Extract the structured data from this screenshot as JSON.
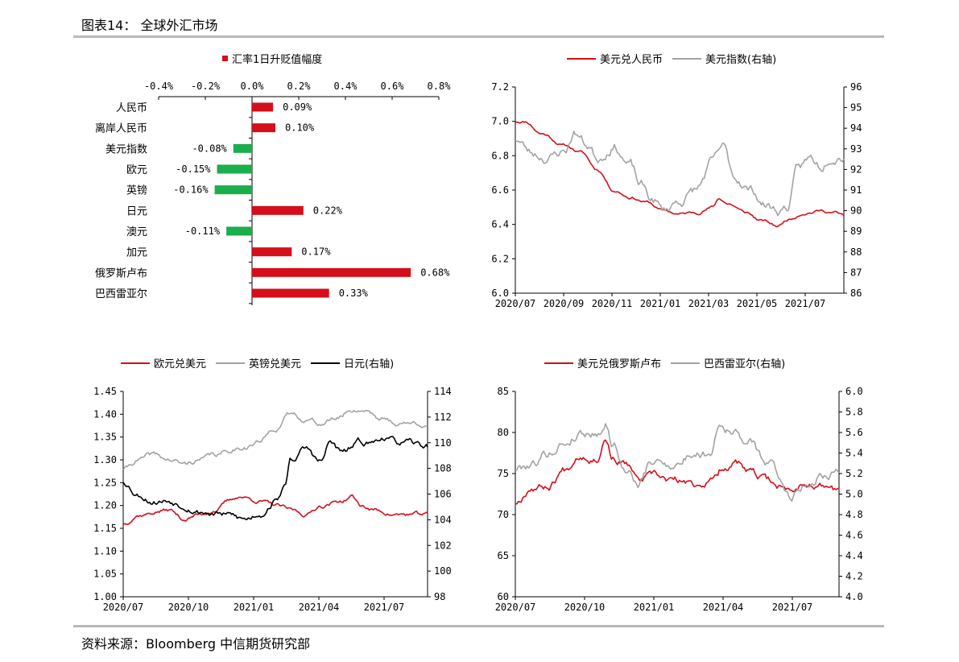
{
  "page": {
    "figure_title": "图表14： 全球外汇市场",
    "source": "资料来源：Bloomberg 中信期货研究部"
  },
  "colors": {
    "red": "#d40f1b",
    "green": "#1aae4c",
    "gray": "#a3a3a3",
    "black": "#000000"
  },
  "chart_data": [
    {
      "id": "fx-bar",
      "type": "bar",
      "orientation": "horizontal",
      "legend": "汇率1日升贬值幅度",
      "legend_position": "top",
      "categories": [
        "人民币",
        "离岸人民币",
        "美元指数",
        "欧元",
        "英镑",
        "日元",
        "澳元",
        "加元",
        "俄罗斯卢布",
        "巴西雷亚尔"
      ],
      "values": [
        0.09,
        0.1,
        -0.08,
        -0.15,
        -0.16,
        0.22,
        -0.11,
        0.17,
        0.68,
        0.33
      ],
      "value_labels": [
        "0.09%",
        "0.10%",
        "-0.08%",
        "-0.15%",
        "-0.16%",
        "0.22%",
        "-0.11%",
        "0.17%",
        "0.68%",
        "0.33%"
      ],
      "xlim": [
        -0.4,
        0.8
      ],
      "xticks": [
        "-0.4%",
        "-0.2%",
        "0.0%",
        "0.2%",
        "0.4%",
        "0.6%",
        "0.8%"
      ],
      "xtick_values": [
        -0.4,
        -0.2,
        0,
        0.2,
        0.4,
        0.6,
        0.8
      ],
      "positive_color": "#d40f1b",
      "negative_color": "#1aae4c"
    },
    {
      "id": "usdcny",
      "type": "line",
      "legend_position": "top",
      "x_start": "2020-07",
      "x_end": "2021-08",
      "xticks": [
        "2020/07",
        "2020/09",
        "2020/11",
        "2021/01",
        "2021/03",
        "2021/05",
        "2021/07"
      ],
      "ylim": [
        6.0,
        7.2
      ],
      "yticks": [
        "6.0",
        "6.2",
        "6.4",
        "6.6",
        "6.8",
        "7.0",
        "7.2"
      ],
      "ylim_right": [
        86,
        96
      ],
      "yticks_right": [
        "86",
        "87",
        "88",
        "89",
        "90",
        "91",
        "92",
        "93",
        "94",
        "95",
        "96"
      ],
      "series": [
        {
          "name": "美元兑人民币",
          "axis": "left",
          "color": "#d40f1b",
          "noise": 0.006,
          "seed": 11,
          "keys": [
            [
              0,
              7.0
            ],
            [
              0.03,
              7.0
            ],
            [
              0.08,
              6.93
            ],
            [
              0.15,
              6.86
            ],
            [
              0.2,
              6.82
            ],
            [
              0.25,
              6.72
            ],
            [
              0.3,
              6.6
            ],
            [
              0.35,
              6.56
            ],
            [
              0.4,
              6.53
            ],
            [
              0.45,
              6.48
            ],
            [
              0.5,
              6.46
            ],
            [
              0.55,
              6.47
            ],
            [
              0.6,
              6.5
            ],
            [
              0.62,
              6.55
            ],
            [
              0.65,
              6.52
            ],
            [
              0.7,
              6.47
            ],
            [
              0.75,
              6.42
            ],
            [
              0.8,
              6.39
            ],
            [
              0.83,
              6.43
            ],
            [
              0.88,
              6.47
            ],
            [
              0.93,
              6.48
            ],
            [
              0.97,
              6.47
            ],
            [
              1.0,
              6.45
            ]
          ]
        },
        {
          "name": "美元指数(右轴)",
          "axis": "right",
          "color": "#a3a3a3",
          "noise": 0.18,
          "seed": 23,
          "keys": [
            [
              0,
              93.5
            ],
            [
              0.05,
              92.8
            ],
            [
              0.1,
              92.6
            ],
            [
              0.15,
              92.9
            ],
            [
              0.18,
              93.8
            ],
            [
              0.22,
              93.2
            ],
            [
              0.25,
              92.6
            ],
            [
              0.3,
              93.2
            ],
            [
              0.35,
              92.2
            ],
            [
              0.38,
              91.2
            ],
            [
              0.42,
              90.5
            ],
            [
              0.45,
              90.0
            ],
            [
              0.5,
              90.5
            ],
            [
              0.55,
              91.0
            ],
            [
              0.6,
              92.3
            ],
            [
              0.63,
              93.0
            ],
            [
              0.67,
              91.6
            ],
            [
              0.72,
              91.0
            ],
            [
              0.76,
              90.3
            ],
            [
              0.8,
              90.0
            ],
            [
              0.83,
              90.2
            ],
            [
              0.86,
              92.0
            ],
            [
              0.9,
              92.5
            ],
            [
              0.93,
              92.2
            ],
            [
              0.96,
              92.8
            ],
            [
              1.0,
              92.8
            ]
          ]
        }
      ]
    },
    {
      "id": "eur-gbp-jpy",
      "type": "line",
      "legend_position": "top",
      "x_start": "2020-07",
      "x_end": "2021-08",
      "xticks": [
        "2020/07",
        "2020/10",
        "2021/01",
        "2021/04",
        "2021/07"
      ],
      "ylim": [
        1.0,
        1.45
      ],
      "yticks": [
        "1.00",
        "1.05",
        "1.10",
        "1.15",
        "1.20",
        "1.25",
        "1.30",
        "1.35",
        "1.40",
        "1.45"
      ],
      "ylim_right": [
        98,
        114
      ],
      "yticks_right": [
        "98",
        "100",
        "102",
        "104",
        "106",
        "108",
        "110",
        "112",
        "114"
      ],
      "series": [
        {
          "name": "欧元兑美元",
          "axis": "left",
          "color": "#d40f1b",
          "noise": 0.003,
          "seed": 37,
          "keys": [
            [
              0,
              1.16
            ],
            [
              0.05,
              1.18
            ],
            [
              0.15,
              1.19
            ],
            [
              0.2,
              1.17
            ],
            [
              0.25,
              1.18
            ],
            [
              0.3,
              1.19
            ],
            [
              0.35,
              1.21
            ],
            [
              0.38,
              1.22
            ],
            [
              0.45,
              1.21
            ],
            [
              0.5,
              1.2
            ],
            [
              0.55,
              1.19
            ],
            [
              0.6,
              1.18
            ],
            [
              0.65,
              1.2
            ],
            [
              0.72,
              1.21
            ],
            [
              0.75,
              1.22
            ],
            [
              0.78,
              1.2
            ],
            [
              0.82,
              1.19
            ],
            [
              0.9,
              1.18
            ],
            [
              1.0,
              1.18
            ]
          ]
        },
        {
          "name": "英镑兑美元",
          "axis": "left",
          "color": "#a3a3a3",
          "noise": 0.004,
          "seed": 41,
          "keys": [
            [
              0,
              1.28
            ],
            [
              0.05,
              1.3
            ],
            [
              0.1,
              1.31
            ],
            [
              0.15,
              1.3
            ],
            [
              0.2,
              1.29
            ],
            [
              0.25,
              1.3
            ],
            [
              0.3,
              1.31
            ],
            [
              0.4,
              1.33
            ],
            [
              0.45,
              1.34
            ],
            [
              0.5,
              1.37
            ],
            [
              0.55,
              1.4
            ],
            [
              0.6,
              1.39
            ],
            [
              0.65,
              1.38
            ],
            [
              0.7,
              1.39
            ],
            [
              0.75,
              1.41
            ],
            [
              0.8,
              1.41
            ],
            [
              0.85,
              1.39
            ],
            [
              0.9,
              1.38
            ],
            [
              1.0,
              1.38
            ]
          ]
        },
        {
          "name": "日元(右轴)",
          "axis": "right",
          "color": "#000000",
          "noise": 0.18,
          "seed": 53,
          "keys": [
            [
              0,
              107
            ],
            [
              0.05,
              106
            ],
            [
              0.1,
              105.5
            ],
            [
              0.15,
              105.5
            ],
            [
              0.2,
              105.2
            ],
            [
              0.25,
              104.7
            ],
            [
              0.3,
              104.5
            ],
            [
              0.35,
              104.3
            ],
            [
              0.4,
              104.0
            ],
            [
              0.45,
              104.5
            ],
            [
              0.5,
              105.5
            ],
            [
              0.53,
              106.5
            ],
            [
              0.55,
              108.7
            ],
            [
              0.6,
              109.5
            ],
            [
              0.65,
              108.5
            ],
            [
              0.68,
              110.0
            ],
            [
              0.72,
              109.2
            ],
            [
              0.78,
              110.0
            ],
            [
              0.82,
              110.0
            ],
            [
              0.85,
              110.5
            ],
            [
              0.9,
              110.0
            ],
            [
              1.0,
              109.7
            ]
          ]
        }
      ]
    },
    {
      "id": "rub-brl",
      "type": "line",
      "legend_position": "top",
      "x_start": "2020-07",
      "x_end": "2021-08",
      "xticks": [
        "2020/07",
        "2020/10",
        "2021/01",
        "2021/04",
        "2021/07"
      ],
      "ylim": [
        60,
        85
      ],
      "yticks": [
        "60",
        "65",
        "70",
        "75",
        "80",
        "85"
      ],
      "ylim_right": [
        4.0,
        6.0
      ],
      "yticks_right": [
        "4.0",
        "4.2",
        "4.4",
        "4.6",
        "4.8",
        "5.0",
        "5.2",
        "5.4",
        "5.6",
        "5.8",
        "6.0"
      ],
      "series": [
        {
          "name": "美元兑俄罗斯卢布",
          "axis": "left",
          "color": "#d40f1b",
          "noise": 0.35,
          "seed": 67,
          "keys": [
            [
              0,
              71.5
            ],
            [
              0.05,
              73.5
            ],
            [
              0.1,
              73.5
            ],
            [
              0.15,
              75.5
            ],
            [
              0.2,
              77.5
            ],
            [
              0.25,
              77.0
            ],
            [
              0.28,
              79.5
            ],
            [
              0.3,
              77.0
            ],
            [
              0.35,
              76.0
            ],
            [
              0.38,
              74.0
            ],
            [
              0.42,
              74.5
            ],
            [
              0.5,
              74.0
            ],
            [
              0.55,
              73.5
            ],
            [
              0.6,
              74.0
            ],
            [
              0.65,
              76.0
            ],
            [
              0.68,
              76.5
            ],
            [
              0.72,
              75.0
            ],
            [
              0.78,
              74.0
            ],
            [
              0.85,
              73.0
            ],
            [
              0.9,
              74.0
            ],
            [
              0.95,
              73.5
            ],
            [
              1.0,
              73.0
            ]
          ]
        },
        {
          "name": "巴西雷亚尔(右轴)",
          "axis": "right",
          "color": "#a3a3a3",
          "noise": 0.035,
          "seed": 79,
          "keys": [
            [
              0,
              5.25
            ],
            [
              0.05,
              5.3
            ],
            [
              0.1,
              5.4
            ],
            [
              0.15,
              5.5
            ],
            [
              0.2,
              5.6
            ],
            [
              0.25,
              5.6
            ],
            [
              0.28,
              5.7
            ],
            [
              0.3,
              5.5
            ],
            [
              0.35,
              5.2
            ],
            [
              0.38,
              5.1
            ],
            [
              0.42,
              5.3
            ],
            [
              0.5,
              5.3
            ],
            [
              0.55,
              5.4
            ],
            [
              0.6,
              5.4
            ],
            [
              0.63,
              5.7
            ],
            [
              0.68,
              5.6
            ],
            [
              0.72,
              5.5
            ],
            [
              0.78,
              5.3
            ],
            [
              0.85,
              5.0
            ],
            [
              0.9,
              5.1
            ],
            [
              0.95,
              5.2
            ],
            [
              1.0,
              5.25
            ]
          ]
        }
      ]
    }
  ]
}
